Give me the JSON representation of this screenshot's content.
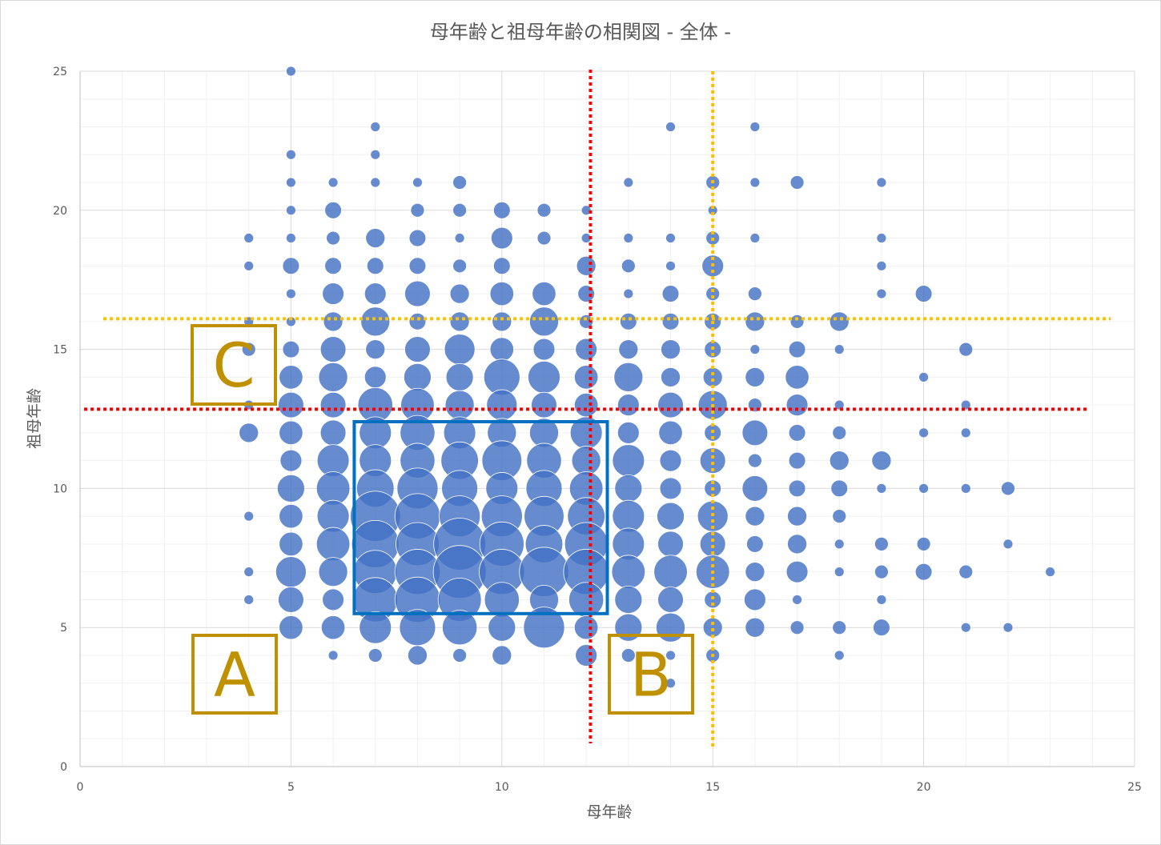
{
  "chart_data": {
    "type": "scatter",
    "title": "母年齢と祖母年齢の相関図 - 全体 -",
    "xlabel": "母年齢",
    "ylabel": "祖母年齢",
    "xlim": [
      0,
      25
    ],
    "ylim": [
      0,
      25
    ],
    "x_ticks": [
      0,
      5,
      10,
      15,
      20,
      25
    ],
    "y_ticks": [
      0,
      5,
      10,
      15,
      20,
      25
    ],
    "minor_gridlines": true,
    "bubble_color": "#4472c4",
    "points": [
      {
        "x": 5,
        "y": 25,
        "s": 1
      },
      {
        "x": 7,
        "y": 23,
        "s": 1
      },
      {
        "x": 14,
        "y": 23,
        "s": 1
      },
      {
        "x": 16,
        "y": 23,
        "s": 1
      },
      {
        "x": 5,
        "y": 22,
        "s": 1
      },
      {
        "x": 7,
        "y": 22,
        "s": 1
      },
      {
        "x": 5,
        "y": 21,
        "s": 1
      },
      {
        "x": 6,
        "y": 21,
        "s": 1
      },
      {
        "x": 7,
        "y": 21,
        "s": 1
      },
      {
        "x": 8,
        "y": 21,
        "s": 1
      },
      {
        "x": 9,
        "y": 21,
        "s": 2
      },
      {
        "x": 13,
        "y": 21,
        "s": 1
      },
      {
        "x": 15,
        "y": 21,
        "s": 2
      },
      {
        "x": 16,
        "y": 21,
        "s": 1
      },
      {
        "x": 17,
        "y": 21,
        "s": 2
      },
      {
        "x": 19,
        "y": 21,
        "s": 1
      },
      {
        "x": 5,
        "y": 20,
        "s": 1
      },
      {
        "x": 6,
        "y": 20,
        "s": 3
      },
      {
        "x": 8,
        "y": 20,
        "s": 2
      },
      {
        "x": 9,
        "y": 20,
        "s": 2
      },
      {
        "x": 10,
        "y": 20,
        "s": 3
      },
      {
        "x": 11,
        "y": 20,
        "s": 2
      },
      {
        "x": 12,
        "y": 20,
        "s": 1
      },
      {
        "x": 15,
        "y": 20,
        "s": 1
      },
      {
        "x": 4,
        "y": 19,
        "s": 1
      },
      {
        "x": 5,
        "y": 19,
        "s": 1
      },
      {
        "x": 6,
        "y": 19,
        "s": 2
      },
      {
        "x": 7,
        "y": 19,
        "s": 4
      },
      {
        "x": 8,
        "y": 19,
        "s": 3
      },
      {
        "x": 9,
        "y": 19,
        "s": 1
      },
      {
        "x": 10,
        "y": 19,
        "s": 5
      },
      {
        "x": 11,
        "y": 19,
        "s": 2
      },
      {
        "x": 12,
        "y": 19,
        "s": 1
      },
      {
        "x": 13,
        "y": 19,
        "s": 1
      },
      {
        "x": 14,
        "y": 19,
        "s": 1
      },
      {
        "x": 15,
        "y": 19,
        "s": 2
      },
      {
        "x": 16,
        "y": 19,
        "s": 1
      },
      {
        "x": 19,
        "y": 19,
        "s": 1
      },
      {
        "x": 4,
        "y": 18,
        "s": 1
      },
      {
        "x": 5,
        "y": 18,
        "s": 3
      },
      {
        "x": 6,
        "y": 18,
        "s": 3
      },
      {
        "x": 7,
        "y": 18,
        "s": 3
      },
      {
        "x": 8,
        "y": 18,
        "s": 3
      },
      {
        "x": 9,
        "y": 18,
        "s": 2
      },
      {
        "x": 10,
        "y": 18,
        "s": 3
      },
      {
        "x": 12,
        "y": 18,
        "s": 4
      },
      {
        "x": 13,
        "y": 18,
        "s": 2
      },
      {
        "x": 14,
        "y": 18,
        "s": 1
      },
      {
        "x": 15,
        "y": 18,
        "s": 5
      },
      {
        "x": 19,
        "y": 18,
        "s": 1
      },
      {
        "x": 5,
        "y": 17,
        "s": 1
      },
      {
        "x": 6,
        "y": 17,
        "s": 5
      },
      {
        "x": 7,
        "y": 17,
        "s": 5
      },
      {
        "x": 8,
        "y": 17,
        "s": 7
      },
      {
        "x": 9,
        "y": 17,
        "s": 4
      },
      {
        "x": 10,
        "y": 17,
        "s": 6
      },
      {
        "x": 11,
        "y": 17,
        "s": 6
      },
      {
        "x": 12,
        "y": 17,
        "s": 3
      },
      {
        "x": 13,
        "y": 17,
        "s": 1
      },
      {
        "x": 14,
        "y": 17,
        "s": 3
      },
      {
        "x": 15,
        "y": 17,
        "s": 2
      },
      {
        "x": 16,
        "y": 17,
        "s": 2
      },
      {
        "x": 19,
        "y": 17,
        "s": 1
      },
      {
        "x": 20,
        "y": 17,
        "s": 3
      },
      {
        "x": 4,
        "y": 16,
        "s": 1
      },
      {
        "x": 5,
        "y": 16,
        "s": 1
      },
      {
        "x": 6,
        "y": 16,
        "s": 4
      },
      {
        "x": 7,
        "y": 16,
        "s": 9
      },
      {
        "x": 8,
        "y": 16,
        "s": 3
      },
      {
        "x": 9,
        "y": 16,
        "s": 4
      },
      {
        "x": 10,
        "y": 16,
        "s": 4
      },
      {
        "x": 11,
        "y": 16,
        "s": 9
      },
      {
        "x": 12,
        "y": 16,
        "s": 2
      },
      {
        "x": 13,
        "y": 16,
        "s": 3
      },
      {
        "x": 14,
        "y": 16,
        "s": 3
      },
      {
        "x": 15,
        "y": 16,
        "s": 3
      },
      {
        "x": 16,
        "y": 16,
        "s": 4
      },
      {
        "x": 17,
        "y": 16,
        "s": 2
      },
      {
        "x": 18,
        "y": 16,
        "s": 4
      },
      {
        "x": 4,
        "y": 15,
        "s": 2
      },
      {
        "x": 5,
        "y": 15,
        "s": 3
      },
      {
        "x": 6,
        "y": 15,
        "s": 7
      },
      {
        "x": 7,
        "y": 15,
        "s": 4
      },
      {
        "x": 8,
        "y": 15,
        "s": 7
      },
      {
        "x": 9,
        "y": 15,
        "s": 10
      },
      {
        "x": 10,
        "y": 15,
        "s": 6
      },
      {
        "x": 11,
        "y": 15,
        "s": 5
      },
      {
        "x": 12,
        "y": 15,
        "s": 5
      },
      {
        "x": 13,
        "y": 15,
        "s": 4
      },
      {
        "x": 14,
        "y": 15,
        "s": 4
      },
      {
        "x": 15,
        "y": 15,
        "s": 3
      },
      {
        "x": 16,
        "y": 15,
        "s": 1
      },
      {
        "x": 17,
        "y": 15,
        "s": 3
      },
      {
        "x": 18,
        "y": 15,
        "s": 1
      },
      {
        "x": 21,
        "y": 15,
        "s": 2
      },
      {
        "x": 5,
        "y": 14,
        "s": 6
      },
      {
        "x": 6,
        "y": 14,
        "s": 9
      },
      {
        "x": 7,
        "y": 14,
        "s": 5
      },
      {
        "x": 8,
        "y": 14,
        "s": 8
      },
      {
        "x": 9,
        "y": 14,
        "s": 8
      },
      {
        "x": 10,
        "y": 14,
        "s": 14
      },
      {
        "x": 11,
        "y": 14,
        "s": 11
      },
      {
        "x": 12,
        "y": 14,
        "s": 6
      },
      {
        "x": 13,
        "y": 14,
        "s": 9
      },
      {
        "x": 14,
        "y": 14,
        "s": 4
      },
      {
        "x": 15,
        "y": 14,
        "s": 4
      },
      {
        "x": 16,
        "y": 14,
        "s": 4
      },
      {
        "x": 17,
        "y": 14,
        "s": 6
      },
      {
        "x": 20,
        "y": 14,
        "s": 1
      },
      {
        "x": 4,
        "y": 13,
        "s": 1
      },
      {
        "x": 5,
        "y": 13,
        "s": 7
      },
      {
        "x": 6,
        "y": 13,
        "s": 7
      },
      {
        "x": 7,
        "y": 13,
        "s": 13
      },
      {
        "x": 8,
        "y": 13,
        "s": 12
      },
      {
        "x": 9,
        "y": 13,
        "s": 9
      },
      {
        "x": 10,
        "y": 13,
        "s": 10
      },
      {
        "x": 11,
        "y": 13,
        "s": 7
      },
      {
        "x": 12,
        "y": 13,
        "s": 6
      },
      {
        "x": 13,
        "y": 13,
        "s": 5
      },
      {
        "x": 14,
        "y": 13,
        "s": 7
      },
      {
        "x": 15,
        "y": 13,
        "s": 9
      },
      {
        "x": 16,
        "y": 13,
        "s": 2
      },
      {
        "x": 17,
        "y": 13,
        "s": 5
      },
      {
        "x": 18,
        "y": 13,
        "s": 1
      },
      {
        "x": 21,
        "y": 13,
        "s": 1
      },
      {
        "x": 4,
        "y": 12,
        "s": 4
      },
      {
        "x": 5,
        "y": 12,
        "s": 6
      },
      {
        "x": 6,
        "y": 12,
        "s": 7
      },
      {
        "x": 7,
        "y": 12,
        "s": 11
      },
      {
        "x": 8,
        "y": 12,
        "s": 13
      },
      {
        "x": 9,
        "y": 12,
        "s": 11
      },
      {
        "x": 10,
        "y": 12,
        "s": 9
      },
      {
        "x": 11,
        "y": 12,
        "s": 9
      },
      {
        "x": 12,
        "y": 12,
        "s": 11
      },
      {
        "x": 13,
        "y": 12,
        "s": 5
      },
      {
        "x": 14,
        "y": 12,
        "s": 6
      },
      {
        "x": 15,
        "y": 12,
        "s": 3
      },
      {
        "x": 16,
        "y": 12,
        "s": 7
      },
      {
        "x": 17,
        "y": 12,
        "s": 3
      },
      {
        "x": 18,
        "y": 12,
        "s": 2
      },
      {
        "x": 20,
        "y": 12,
        "s": 1
      },
      {
        "x": 21,
        "y": 12,
        "s": 1
      },
      {
        "x": 5,
        "y": 11,
        "s": 5
      },
      {
        "x": 6,
        "y": 11,
        "s": 11
      },
      {
        "x": 7,
        "y": 11,
        "s": 11
      },
      {
        "x": 8,
        "y": 11,
        "s": 13
      },
      {
        "x": 9,
        "y": 11,
        "s": 15
      },
      {
        "x": 10,
        "y": 11,
        "s": 17
      },
      {
        "x": 11,
        "y": 11,
        "s": 13
      },
      {
        "x": 12,
        "y": 11,
        "s": 9
      },
      {
        "x": 13,
        "y": 11,
        "s": 11
      },
      {
        "x": 14,
        "y": 11,
        "s": 5
      },
      {
        "x": 15,
        "y": 11,
        "s": 7
      },
      {
        "x": 16,
        "y": 11,
        "s": 2
      },
      {
        "x": 17,
        "y": 11,
        "s": 3
      },
      {
        "x": 18,
        "y": 11,
        "s": 4
      },
      {
        "x": 19,
        "y": 11,
        "s": 4
      },
      {
        "x": 5,
        "y": 10,
        "s": 8
      },
      {
        "x": 6,
        "y": 10,
        "s": 12
      },
      {
        "x": 7,
        "y": 10,
        "s": 15
      },
      {
        "x": 8,
        "y": 10,
        "s": 18
      },
      {
        "x": 9,
        "y": 10,
        "s": 14
      },
      {
        "x": 10,
        "y": 10,
        "s": 11
      },
      {
        "x": 11,
        "y": 10,
        "s": 14
      },
      {
        "x": 12,
        "y": 10,
        "s": 12
      },
      {
        "x": 13,
        "y": 10,
        "s": 8
      },
      {
        "x": 14,
        "y": 10,
        "s": 5
      },
      {
        "x": 15,
        "y": 10,
        "s": 3
      },
      {
        "x": 16,
        "y": 10,
        "s": 7
      },
      {
        "x": 17,
        "y": 10,
        "s": 3
      },
      {
        "x": 18,
        "y": 10,
        "s": 3
      },
      {
        "x": 19,
        "y": 10,
        "s": 1
      },
      {
        "x": 20,
        "y": 10,
        "s": 1
      },
      {
        "x": 21,
        "y": 10,
        "s": 1
      },
      {
        "x": 22,
        "y": 10,
        "s": 2
      },
      {
        "x": 4,
        "y": 9,
        "s": 1
      },
      {
        "x": 5,
        "y": 9,
        "s": 6
      },
      {
        "x": 6,
        "y": 9,
        "s": 11
      },
      {
        "x": 7,
        "y": 9,
        "s": 27
      },
      {
        "x": 8,
        "y": 9,
        "s": 22
      },
      {
        "x": 9,
        "y": 9,
        "s": 18
      },
      {
        "x": 10,
        "y": 9,
        "s": 18
      },
      {
        "x": 11,
        "y": 9,
        "s": 17
      },
      {
        "x": 12,
        "y": 9,
        "s": 15
      },
      {
        "x": 13,
        "y": 9,
        "s": 11
      },
      {
        "x": 14,
        "y": 9,
        "s": 8
      },
      {
        "x": 15,
        "y": 9,
        "s": 10
      },
      {
        "x": 16,
        "y": 9,
        "s": 4
      },
      {
        "x": 17,
        "y": 9,
        "s": 4
      },
      {
        "x": 18,
        "y": 9,
        "s": 2
      },
      {
        "x": 5,
        "y": 8,
        "s": 6
      },
      {
        "x": 6,
        "y": 8,
        "s": 12
      },
      {
        "x": 7,
        "y": 8,
        "s": 24
      },
      {
        "x": 8,
        "y": 8,
        "s": 20
      },
      {
        "x": 9,
        "y": 8,
        "s": 29
      },
      {
        "x": 10,
        "y": 8,
        "s": 21
      },
      {
        "x": 11,
        "y": 8,
        "s": 15
      },
      {
        "x": 12,
        "y": 8,
        "s": 20
      },
      {
        "x": 13,
        "y": 8,
        "s": 11
      },
      {
        "x": 14,
        "y": 8,
        "s": 7
      },
      {
        "x": 15,
        "y": 8,
        "s": 7
      },
      {
        "x": 16,
        "y": 8,
        "s": 3
      },
      {
        "x": 17,
        "y": 8,
        "s": 4
      },
      {
        "x": 18,
        "y": 8,
        "s": 1
      },
      {
        "x": 19,
        "y": 8,
        "s": 2
      },
      {
        "x": 20,
        "y": 8,
        "s": 2
      },
      {
        "x": 22,
        "y": 8,
        "s": 1
      },
      {
        "x": 4,
        "y": 7,
        "s": 1
      },
      {
        "x": 5,
        "y": 7,
        "s": 10
      },
      {
        "x": 6,
        "y": 7,
        "s": 9
      },
      {
        "x": 7,
        "y": 7,
        "s": 20
      },
      {
        "x": 8,
        "y": 7,
        "s": 22
      },
      {
        "x": 9,
        "y": 7,
        "s": 30
      },
      {
        "x": 10,
        "y": 7,
        "s": 22
      },
      {
        "x": 11,
        "y": 7,
        "s": 26
      },
      {
        "x": 12,
        "y": 7,
        "s": 22
      },
      {
        "x": 13,
        "y": 7,
        "s": 12
      },
      {
        "x": 14,
        "y": 7,
        "s": 12
      },
      {
        "x": 15,
        "y": 7,
        "s": 12
      },
      {
        "x": 16,
        "y": 7,
        "s": 4
      },
      {
        "x": 17,
        "y": 7,
        "s": 5
      },
      {
        "x": 18,
        "y": 7,
        "s": 1
      },
      {
        "x": 19,
        "y": 7,
        "s": 2
      },
      {
        "x": 20,
        "y": 7,
        "s": 3
      },
      {
        "x": 21,
        "y": 7,
        "s": 2
      },
      {
        "x": 23,
        "y": 7,
        "s": 1
      },
      {
        "x": 4,
        "y": 6,
        "s": 1
      },
      {
        "x": 5,
        "y": 6,
        "s": 7
      },
      {
        "x": 6,
        "y": 6,
        "s": 5
      },
      {
        "x": 7,
        "y": 6,
        "s": 21
      },
      {
        "x": 8,
        "y": 6,
        "s": 22
      },
      {
        "x": 9,
        "y": 6,
        "s": 20
      },
      {
        "x": 10,
        "y": 6,
        "s": 13
      },
      {
        "x": 11,
        "y": 6,
        "s": 9
      },
      {
        "x": 12,
        "y": 6,
        "s": 13
      },
      {
        "x": 13,
        "y": 6,
        "s": 8
      },
      {
        "x": 14,
        "y": 6,
        "s": 7
      },
      {
        "x": 15,
        "y": 6,
        "s": 3
      },
      {
        "x": 16,
        "y": 6,
        "s": 5
      },
      {
        "x": 17,
        "y": 6,
        "s": 1
      },
      {
        "x": 19,
        "y": 6,
        "s": 1
      },
      {
        "x": 5,
        "y": 5,
        "s": 6
      },
      {
        "x": 6,
        "y": 5,
        "s": 6
      },
      {
        "x": 7,
        "y": 5,
        "s": 11
      },
      {
        "x": 8,
        "y": 5,
        "s": 14
      },
      {
        "x": 9,
        "y": 5,
        "s": 13
      },
      {
        "x": 10,
        "y": 5,
        "s": 8
      },
      {
        "x": 11,
        "y": 5,
        "s": 18
      },
      {
        "x": 12,
        "y": 5,
        "s": 6
      },
      {
        "x": 13,
        "y": 5,
        "s": 8
      },
      {
        "x": 14,
        "y": 5,
        "s": 9
      },
      {
        "x": 15,
        "y": 5,
        "s": 4
      },
      {
        "x": 16,
        "y": 5,
        "s": 4
      },
      {
        "x": 17,
        "y": 5,
        "s": 2
      },
      {
        "x": 18,
        "y": 5,
        "s": 2
      },
      {
        "x": 19,
        "y": 5,
        "s": 3
      },
      {
        "x": 21,
        "y": 5,
        "s": 1
      },
      {
        "x": 22,
        "y": 5,
        "s": 1
      },
      {
        "x": 6,
        "y": 4,
        "s": 1
      },
      {
        "x": 7,
        "y": 4,
        "s": 2
      },
      {
        "x": 8,
        "y": 4,
        "s": 4
      },
      {
        "x": 9,
        "y": 4,
        "s": 2
      },
      {
        "x": 10,
        "y": 4,
        "s": 4
      },
      {
        "x": 12,
        "y": 4,
        "s": 5
      },
      {
        "x": 13,
        "y": 4,
        "s": 2
      },
      {
        "x": 14,
        "y": 4,
        "s": 1
      },
      {
        "x": 15,
        "y": 4,
        "s": 2
      },
      {
        "x": 18,
        "y": 4,
        "s": 1
      },
      {
        "x": 14,
        "y": 3,
        "s": 1
      }
    ],
    "reference_lines": [
      {
        "orientation": "vertical",
        "x": 12.1,
        "color": "#ff0000"
      },
      {
        "orientation": "horizontal",
        "y": 12.85,
        "color": "#ff0000"
      },
      {
        "orientation": "vertical",
        "x": 15.0,
        "color": "#ffc000"
      },
      {
        "orientation": "horizontal",
        "y": 16.1,
        "color": "#ffc000"
      }
    ],
    "annotations": [
      {
        "label": "A",
        "color": "#bf9000"
      },
      {
        "label": "B",
        "color": "#bf9000"
      },
      {
        "label": "C",
        "color": "#bf9000"
      }
    ],
    "highlight_box": {
      "x": [
        6.5,
        12.5
      ],
      "y": [
        5.5,
        12.4
      ],
      "color": "#0070c0"
    }
  }
}
